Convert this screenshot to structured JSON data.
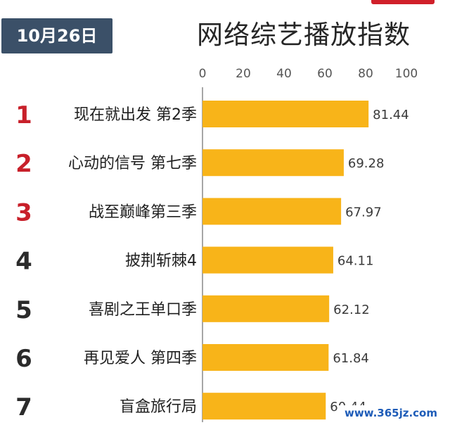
{
  "header": {
    "date_label": "10月26日",
    "title": "网络综艺播放指数"
  },
  "watermark": "www.365jz.com",
  "colors": {
    "bar": "#f8b419",
    "rank_top": "#c8202a",
    "rank_other": "#2b2b2b",
    "badge_bg": "#3b5068",
    "axis": "#888888"
  },
  "chart_data": {
    "type": "bar",
    "orientation": "horizontal",
    "title": "网络综艺播放指数",
    "categories": [
      "现在就出发 第2季",
      "心动的信号 第七季",
      "战至巅峰第三季",
      "披荆斩棘4",
      "喜剧之王单口季",
      "再见爱人 第四季",
      "盲盒旅行局"
    ],
    "ranks": [
      "1",
      "2",
      "3",
      "4",
      "5",
      "6",
      "7"
    ],
    "values": [
      81.44,
      69.28,
      67.97,
      64.11,
      62.12,
      61.84,
      60.44
    ],
    "value_labels": [
      "81.44",
      "69.28",
      "67.97",
      "64.11",
      "62.12",
      "61.84",
      "60.44"
    ],
    "xlim": [
      0,
      100
    ],
    "x_ticks": [
      "0",
      "20",
      "40",
      "60",
      "80",
      "100"
    ],
    "x_tick_values": [
      0,
      20,
      40,
      60,
      80,
      100
    ],
    "axis_position": "top",
    "grid": false,
    "legend": "none"
  }
}
